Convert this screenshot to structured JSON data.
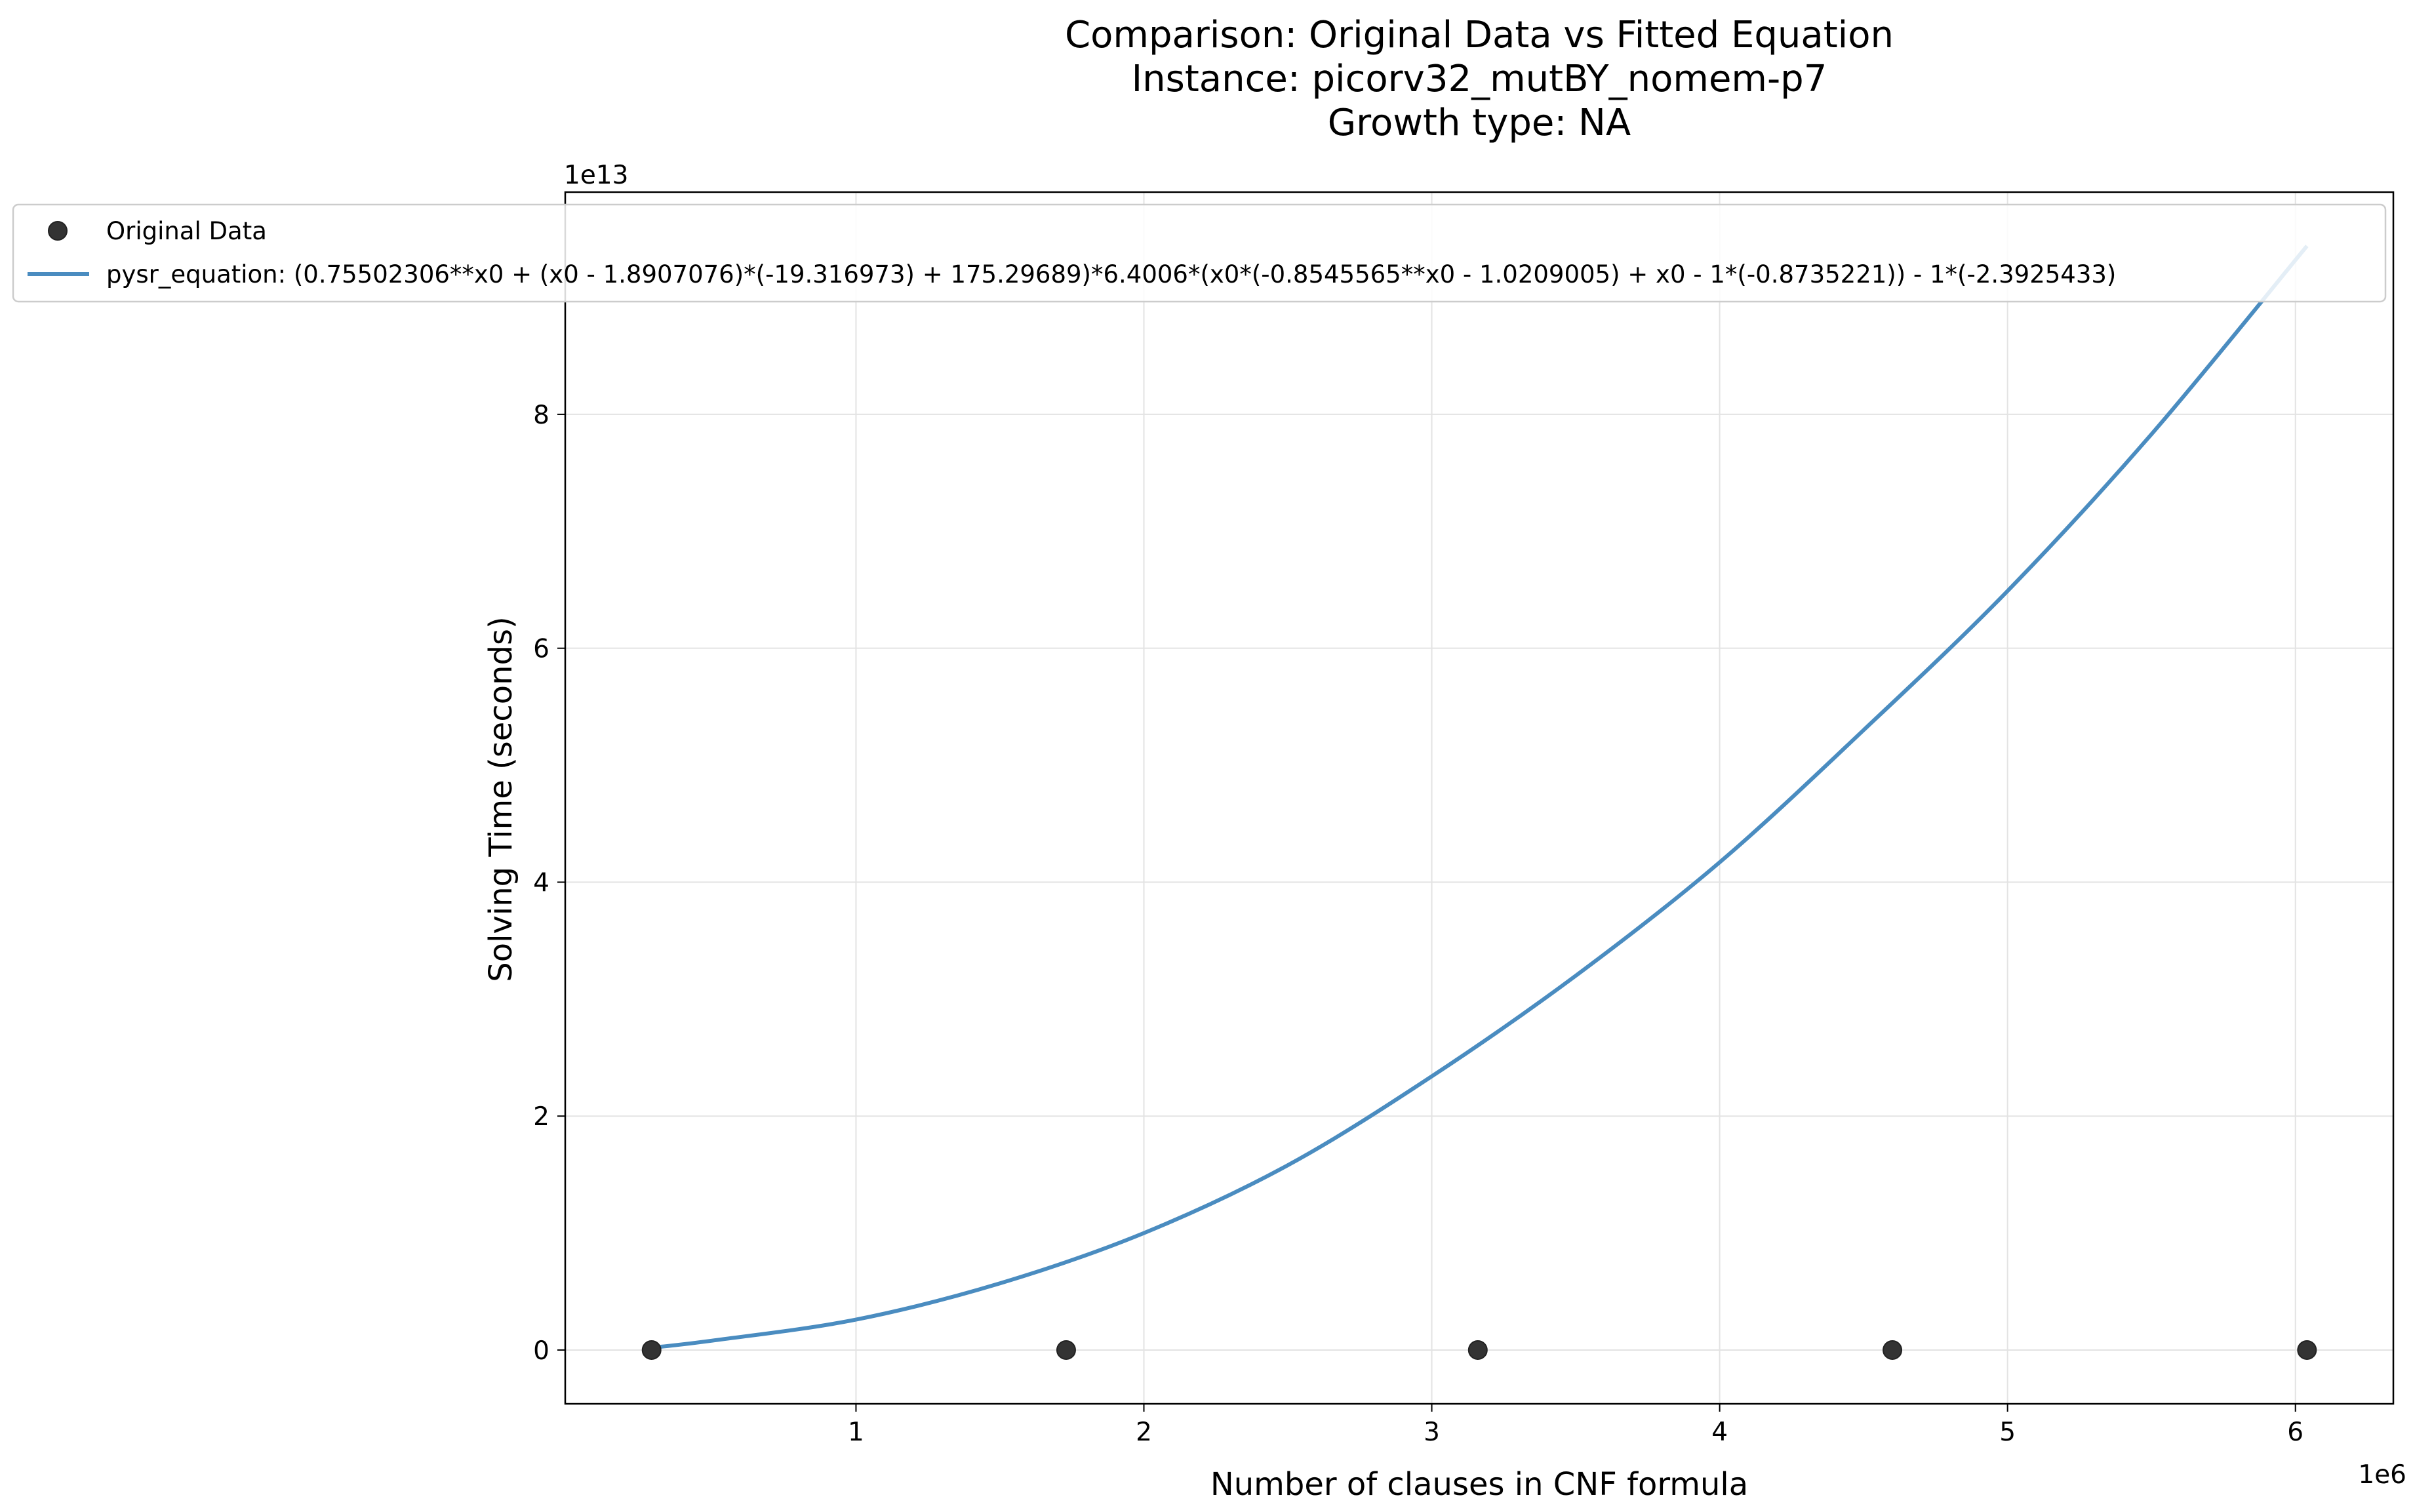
{
  "chart_data": {
    "type": "scatter",
    "title": [
      "Comparison: Original Data vs Fitted Equation",
      "Instance: picorv32_mutBY_nomem-p7",
      "Growth type: NA"
    ],
    "xlabel": "Number of clauses in CNF formula",
    "ylabel": "Solving Time (seconds)",
    "x_offset_label": "1e6",
    "y_offset_label": "1e13",
    "x_scale": 1000000,
    "y_scale": 10000000000000,
    "xlim": [
      -0.01,
      6.34
    ],
    "ylim": [
      -0.46,
      9.9
    ],
    "x_ticks": [
      1,
      2,
      3,
      4,
      5,
      6
    ],
    "x_tick_labels": [
      "1",
      "2",
      "3",
      "4",
      "5",
      "6"
    ],
    "y_ticks": [
      0,
      2,
      4,
      6,
      8
    ],
    "y_tick_labels": [
      "0",
      "2",
      "4",
      "6",
      "8"
    ],
    "grid": true,
    "legend_position": "top-left",
    "series": [
      {
        "name": "Original Data",
        "kind": "scatter",
        "color": "#333333",
        "x": [
          0.29,
          1.73,
          3.16,
          4.6,
          6.04
        ],
        "y": [
          0,
          0,
          0,
          0,
          0
        ]
      },
      {
        "name": "pysr_equation: (0.75502306**x0 + (x0 - 1.8907076)*(-19.316973) + 175.29689)*6.4006*(x0*(-0.8545565**x0 - 1.0209005) + x0 - 1*(-0.8735221)) - 1*(-2.3925433)",
        "kind": "line",
        "color": "#4a8cc0",
        "x": [
          0.29,
          0.5,
          1.0,
          1.5,
          2.0,
          2.5,
          3.0,
          3.5,
          4.0,
          4.5,
          5.0,
          5.5,
          6.04
        ],
        "y": [
          0.02,
          0.08,
          0.26,
          0.57,
          1.0,
          1.58,
          2.34,
          3.2,
          4.17,
          5.3,
          6.49,
          7.83,
          9.44
        ]
      }
    ]
  }
}
